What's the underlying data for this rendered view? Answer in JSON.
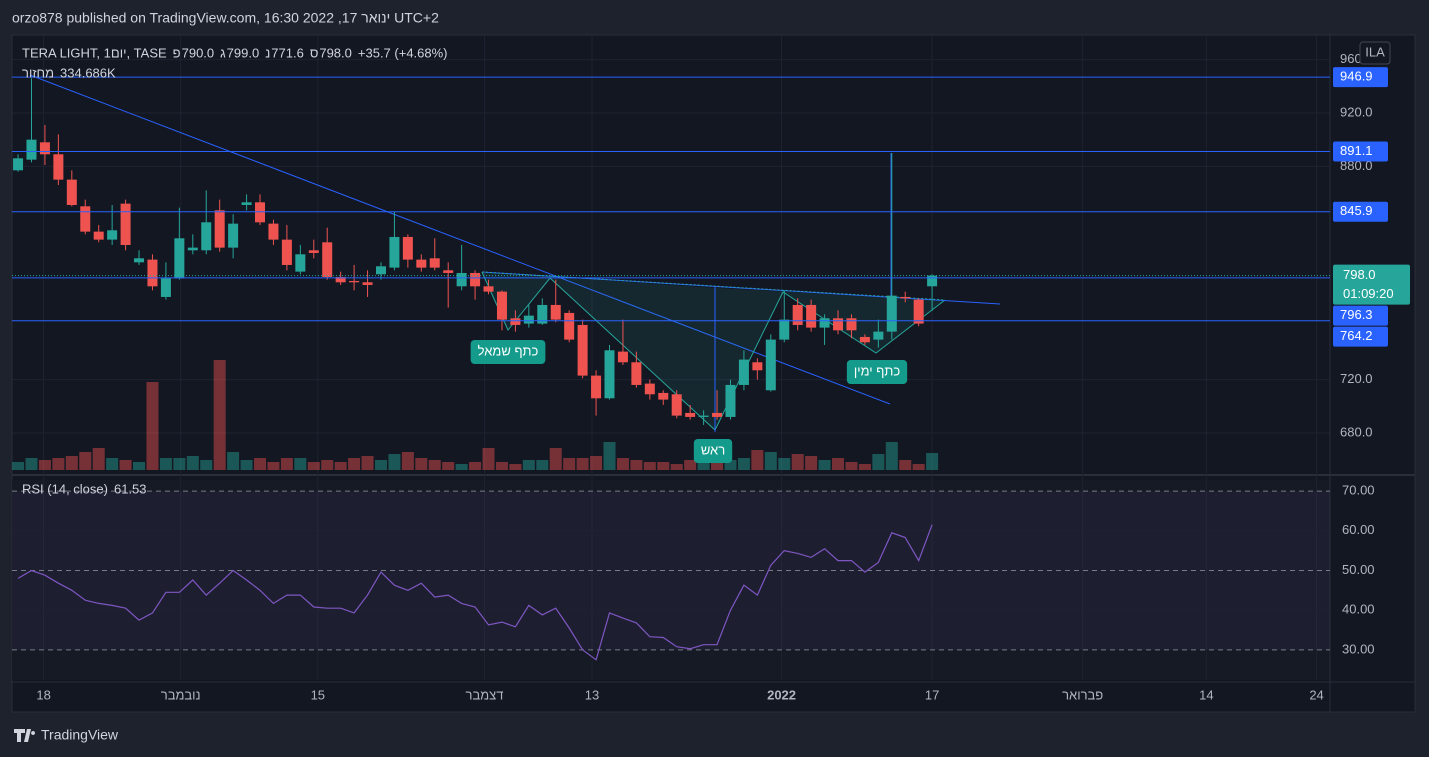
{
  "header": {
    "published": "orzo878 published on TradingView.com, ינואר 17, 2022 16:30 UTC+2",
    "brand": "TradingView"
  },
  "chart_data": {
    "type": "candlestick",
    "symbol": "TERA LIGHT, 1יום, TASE",
    "ohlc_legend": [
      {
        "label": "פ",
        "text": "790.0"
      },
      {
        "label": "ג",
        "text": "799.0"
      },
      {
        "label": "נ",
        "text": "771.6"
      },
      {
        "label": "ס",
        "text": "798.0"
      }
    ],
    "change": "+35.7 (+4.68%)",
    "open": [
      877,
      885,
      898,
      889,
      870,
      850,
      831,
      825,
      852,
      808,
      810,
      782,
      796,
      817,
      817,
      847,
      819,
      851,
      853,
      837,
      825,
      801,
      817,
      823,
      797,
      794,
      793,
      799,
      804,
      827,
      810,
      811,
      802,
      790,
      800,
      790,
      786,
      766,
      762,
      762,
      776,
      770,
      761,
      723,
      706,
      741,
      733,
      717,
      710,
      709,
      695,
      692,
      695,
      692,
      716,
      733,
      712,
      750,
      776,
      776,
      759,
      766,
      766,
      752,
      750,
      756,
      782,
      780,
      790
    ],
    "high": [
      889,
      946,
      911,
      904,
      877,
      855,
      836,
      851,
      855,
      817,
      814,
      808,
      849,
      829,
      862,
      855,
      844,
      859,
      859,
      840,
      836,
      821,
      825,
      834,
      801,
      806,
      802,
      808,
      846,
      829,
      814,
      826,
      808,
      821,
      802,
      795,
      787,
      772,
      776,
      781,
      795,
      772,
      765,
      727,
      746,
      765,
      741,
      720,
      712,
      712,
      701,
      697,
      712,
      720,
      742,
      736,
      754,
      787,
      781,
      780,
      769,
      772,
      769,
      754,
      765,
      890,
      786,
      781,
      799
    ],
    "low": [
      876,
      883,
      881,
      866,
      850,
      829,
      823,
      821,
      817,
      806,
      787,
      780,
      795,
      814,
      814,
      816,
      811,
      847,
      836,
      821,
      802,
      799,
      811,
      795,
      791,
      787,
      782,
      795,
      802,
      804,
      801,
      802,
      774,
      787,
      780,
      784,
      757,
      756,
      759,
      761,
      763,
      748,
      721,
      693,
      705,
      731,
      714,
      705,
      701,
      691,
      690,
      686,
      690,
      690,
      712,
      720,
      711,
      748,
      757,
      756,
      746,
      754,
      751,
      746,
      744,
      750,
      778,
      760,
      771.6
    ],
    "close": [
      886,
      900,
      889,
      870,
      851,
      831,
      825,
      832,
      821,
      811,
      790,
      796,
      826,
      819,
      838,
      819,
      837,
      853,
      838,
      825,
      806,
      814,
      815,
      797,
      793,
      793,
      791,
      805,
      827,
      810,
      804,
      804,
      800,
      800,
      790,
      786,
      765,
      761,
      768,
      776,
      765,
      750,
      723,
      706,
      742,
      733,
      716,
      709,
      705,
      693,
      692,
      693,
      692,
      716,
      735,
      727,
      750,
      765,
      761,
      759,
      766,
      757,
      757,
      748,
      756,
      783,
      781,
      762,
      798
    ],
    "up_color": "#26a69a",
    "down_color": "#ef5350",
    "xlim": [
      -0.45,
      97.6
    ],
    "xticks": [
      {
        "value": 1.9,
        "label": "18"
      },
      {
        "value": 12.1,
        "label": "נובמבר"
      },
      {
        "value": 22.3,
        "label": "15"
      },
      {
        "value": 34.7,
        "label": "דצמבר"
      },
      {
        "value": 42.7,
        "label": "13"
      },
      {
        "value": 56.8,
        "label": "2022"
      },
      {
        "value": 68,
        "label": "17"
      },
      {
        "value": 79.2,
        "label": "פברואר"
      },
      {
        "value": 88.4,
        "label": "14"
      },
      {
        "value": 96.6,
        "label": "24"
      }
    ],
    "ylim": [
      652.2,
      978.5
    ],
    "yticks": [
      {
        "value": 680,
        "label": "680.0"
      },
      {
        "value": 720,
        "label": "720.0"
      },
      {
        "value": 880,
        "label": "880.0"
      },
      {
        "value": 920,
        "label": "920.0"
      },
      {
        "value": 960,
        "label": "960.0"
      }
    ],
    "grid": true,
    "volume": {
      "name": "מחזור",
      "value_label": "334.686K",
      "values": [
        158,
        236,
        197,
        236,
        276,
        355,
        433,
        236,
        197,
        158,
        1734,
        236,
        236,
        276,
        197,
        2167,
        355,
        197,
        236,
        158,
        236,
        236,
        158,
        197,
        158,
        236,
        276,
        197,
        315,
        355,
        236,
        197,
        158,
        118,
        158,
        433,
        158,
        118,
        197,
        197,
        433,
        236,
        236,
        276,
        552,
        236,
        197,
        158,
        158,
        118,
        197,
        197,
        158,
        197,
        236,
        394,
        355,
        236,
        315,
        276,
        197,
        236,
        158,
        118,
        315,
        552,
        197,
        118,
        334.686
      ]
    },
    "levels": [
      946.9,
      891.1,
      845.9,
      796.3,
      764.2
    ],
    "level_color": "#2962ff",
    "last_price": {
      "value": 798,
      "label": "798.0"
    },
    "countdown": "01:09:20",
    "currency": "ILA",
    "annotations": [
      "כתף שמאל",
      "ראש",
      "כתף ימין"
    ],
    "rsi": {
      "name": "RSI (14, close)",
      "color": "#7e57c2",
      "values": [
        48,
        50,
        48.8,
        46.8,
        45,
        42.5,
        41.7,
        41.2,
        40.5,
        37.5,
        39.3,
        44.5,
        44.5,
        47.6,
        43.8,
        46.8,
        50,
        47.6,
        45,
        41.7,
        43.8,
        43.8,
        40.8,
        40.5,
        40.5,
        39.3,
        43.8,
        49.6,
        46.3,
        45,
        46.8,
        43.3,
        43.8,
        41.7,
        40.8,
        36.3,
        37,
        35.8,
        41.2,
        38.8,
        40.5,
        35.5,
        30,
        27.5,
        39.3,
        38,
        36.8,
        33.3,
        33.1,
        30.8,
        30.3,
        31.3,
        31.3,
        40,
        46.3,
        43.8,
        51.3,
        55,
        54.3,
        53.3,
        55.5,
        52.5,
        52.5,
        49.6,
        52,
        59.5,
        58.3,
        52.5,
        61.53
      ],
      "ylim": [
        22.4,
        72.8
      ],
      "yticks": [
        {
          "value": 30,
          "label": "30.00"
        },
        {
          "value": 40,
          "label": "40.00"
        },
        {
          "value": 50,
          "label": "50.00"
        },
        {
          "value": 60,
          "label": "60.00"
        },
        {
          "value": 70,
          "label": "70.00"
        }
      ]
    }
  }
}
